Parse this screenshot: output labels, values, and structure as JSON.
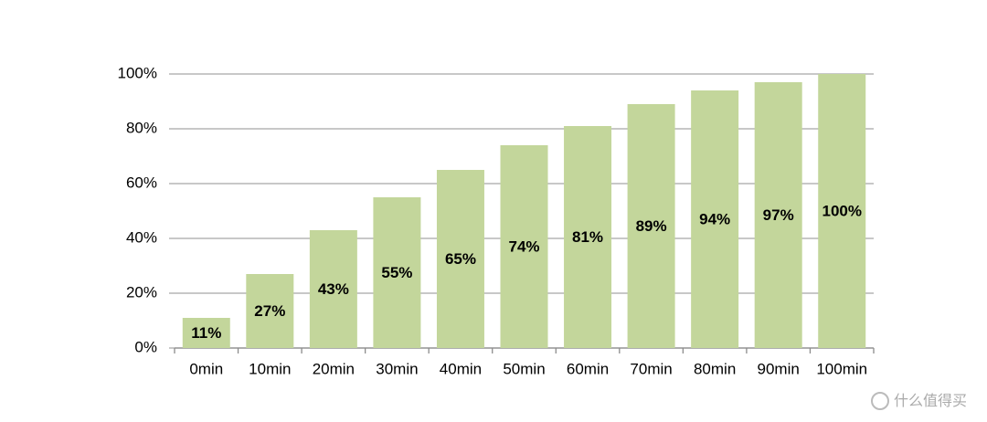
{
  "chart_data": {
    "type": "bar",
    "categories": [
      "0min",
      "10min",
      "20min",
      "30min",
      "40min",
      "50min",
      "60min",
      "70min",
      "80min",
      "90min",
      "100min"
    ],
    "values": [
      11,
      27,
      43,
      55,
      65,
      74,
      81,
      89,
      94,
      97,
      100
    ],
    "value_labels": [
      "11%",
      "27%",
      "43%",
      "55%",
      "65%",
      "74%",
      "81%",
      "89%",
      "94%",
      "97%",
      "100%"
    ],
    "color": "#c3d69b",
    "ylim": [
      0,
      100
    ],
    "yticks": [
      {
        "value": 0,
        "label": "0%"
      },
      {
        "value": 20,
        "label": "20%"
      },
      {
        "value": 40,
        "label": "40%"
      },
      {
        "value": 60,
        "label": "60%"
      },
      {
        "value": 80,
        "label": "80%"
      },
      {
        "value": 100,
        "label": "100%"
      }
    ],
    "grid": true
  },
  "watermark": "什么值得买"
}
